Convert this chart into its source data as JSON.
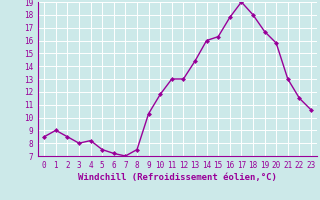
{
  "x": [
    0,
    1,
    2,
    3,
    4,
    5,
    6,
    7,
    8,
    9,
    10,
    11,
    12,
    13,
    14,
    15,
    16,
    17,
    18,
    19,
    20,
    21,
    22,
    23
  ],
  "y": [
    8.5,
    9.0,
    8.5,
    8.0,
    8.2,
    7.5,
    7.2,
    7.0,
    7.5,
    10.3,
    11.8,
    13.0,
    13.0,
    14.4,
    16.0,
    16.3,
    17.8,
    19.0,
    18.0,
    16.7,
    15.8,
    13.0,
    11.5,
    10.6
  ],
  "line_color": "#990099",
  "marker": "D",
  "markersize": 2,
  "linewidth": 1.0,
  "xlabel": "Windchill (Refroidissement éolien,°C)",
  "ylabel": "",
  "title": "",
  "xlim": [
    -0.5,
    23.5
  ],
  "ylim": [
    7,
    19
  ],
  "yticks": [
    7,
    8,
    9,
    10,
    11,
    12,
    13,
    14,
    15,
    16,
    17,
    18,
    19
  ],
  "xticks": [
    0,
    1,
    2,
    3,
    4,
    5,
    6,
    7,
    8,
    9,
    10,
    11,
    12,
    13,
    14,
    15,
    16,
    17,
    18,
    19,
    20,
    21,
    22,
    23
  ],
  "background_color": "#cce9e9",
  "grid_color": "#ffffff",
  "tick_label_fontsize": 5.5,
  "xlabel_fontsize": 6.5,
  "xlabel_color": "#990099",
  "tick_color": "#990099",
  "spine_color": "#990099"
}
